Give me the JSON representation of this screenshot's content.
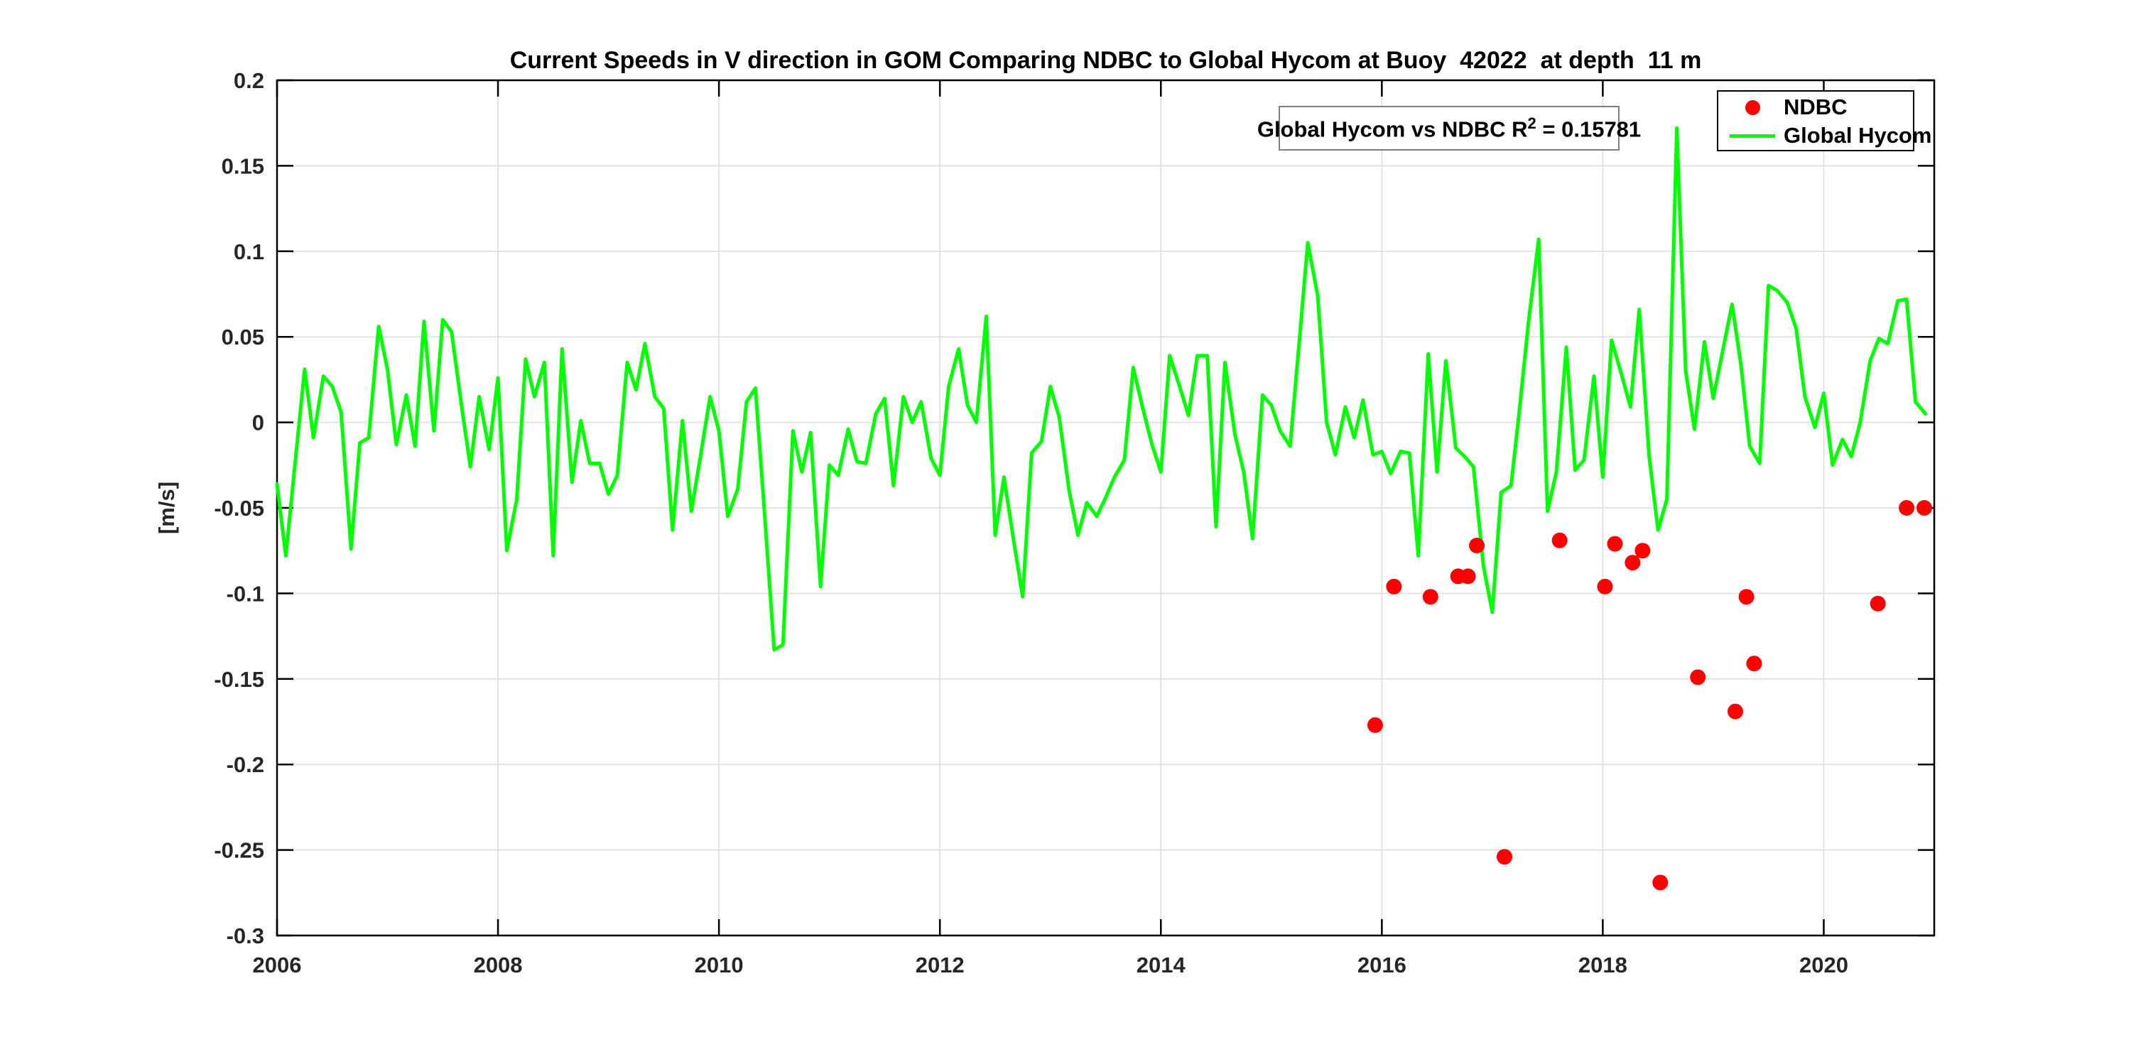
{
  "figure": {
    "title": "Current Speeds in V direction in GOM Comparing NDBC to Global Hycom at Buoy  42022  at depth  11 m",
    "background_color": "#ffffff",
    "axis_color": "#000000",
    "grid_color": "#e2e2e2",
    "tick_label_color": "#262626"
  },
  "annotation": {
    "text_main": "Global Hycom vs NDBC R",
    "superscript": "2",
    "text_value": " = 0.15781"
  },
  "legend": {
    "entries": [
      {
        "label": "NDBC",
        "marker": "red-dot-marker",
        "color": "#ff0000"
      },
      {
        "label": "Global Hycom",
        "marker": "green-line-marker",
        "color": "#00ff00"
      }
    ]
  },
  "chart_data": {
    "type": "line",
    "title": "Current Speeds in V direction in GOM Comparing NDBC to Global Hycom at Buoy  42022  at depth  11 m",
    "xlabel": "",
    "ylabel": "[m/s]",
    "xlim": [
      2006,
      2021
    ],
    "ylim": [
      -0.3,
      0.2
    ],
    "grid": true,
    "legend_position": "top-right",
    "x_ticks": [
      2006,
      2008,
      2010,
      2012,
      2014,
      2016,
      2018,
      2020
    ],
    "x_tick_labels": [
      "2006",
      "2008",
      "2010",
      "2012",
      "2014",
      "2016",
      "2018",
      "2020"
    ],
    "y_ticks": [
      0.2,
      0.15,
      0.1,
      0.05,
      0,
      -0.05,
      -0.1,
      -0.15,
      -0.2,
      -0.25,
      -0.3
    ],
    "y_tick_labels": [
      "0.2",
      "0.15",
      "0.1",
      "0.05",
      "0",
      "-0.05",
      "-0.1",
      "-0.15",
      "-0.2",
      "-0.25",
      "-0.3"
    ],
    "series": [
      {
        "name": "Global Hycom",
        "type": "line",
        "color": "#00ff00",
        "line_width": 5,
        "points": [
          [
            2006.0,
            -0.036
          ],
          [
            2006.08,
            -0.078
          ],
          [
            2006.17,
            -0.02
          ],
          [
            2006.25,
            0.031
          ],
          [
            2006.33,
            -0.009
          ],
          [
            2006.42,
            0.027
          ],
          [
            2006.5,
            0.021
          ],
          [
            2006.58,
            0.006
          ],
          [
            2006.67,
            -0.074
          ],
          [
            2006.75,
            -0.012
          ],
          [
            2006.83,
            -0.009
          ],
          [
            2006.92,
            0.056
          ],
          [
            2007.0,
            0.031
          ],
          [
            2007.08,
            -0.013
          ],
          [
            2007.17,
            0.016
          ],
          [
            2007.25,
            -0.014
          ],
          [
            2007.33,
            0.059
          ],
          [
            2007.42,
            -0.005
          ],
          [
            2007.5,
            0.06
          ],
          [
            2007.58,
            0.053
          ],
          [
            2007.67,
            0.01
          ],
          [
            2007.75,
            -0.026
          ],
          [
            2007.83,
            0.015
          ],
          [
            2007.92,
            -0.016
          ],
          [
            2008.0,
            0.026
          ],
          [
            2008.08,
            -0.075
          ],
          [
            2008.17,
            -0.045
          ],
          [
            2008.25,
            0.037
          ],
          [
            2008.33,
            0.015
          ],
          [
            2008.42,
            0.035
          ],
          [
            2008.5,
            -0.078
          ],
          [
            2008.58,
            0.043
          ],
          [
            2008.67,
            -0.035
          ],
          [
            2008.75,
            0.001
          ],
          [
            2008.83,
            -0.024
          ],
          [
            2008.92,
            -0.024
          ],
          [
            2009.0,
            -0.042
          ],
          [
            2009.08,
            -0.031
          ],
          [
            2009.17,
            0.035
          ],
          [
            2009.25,
            0.019
          ],
          [
            2009.33,
            0.046
          ],
          [
            2009.42,
            0.015
          ],
          [
            2009.5,
            0.008
          ],
          [
            2009.58,
            -0.063
          ],
          [
            2009.67,
            0.001
          ],
          [
            2009.75,
            -0.052
          ],
          [
            2009.83,
            -0.021
          ],
          [
            2009.92,
            0.015
          ],
          [
            2010.0,
            -0.005
          ],
          [
            2010.08,
            -0.055
          ],
          [
            2010.17,
            -0.039
          ],
          [
            2010.25,
            0.012
          ],
          [
            2010.33,
            0.02
          ],
          [
            2010.42,
            -0.06
          ],
          [
            2010.5,
            -0.133
          ],
          [
            2010.58,
            -0.13
          ],
          [
            2010.67,
            -0.005
          ],
          [
            2010.75,
            -0.029
          ],
          [
            2010.83,
            -0.006
          ],
          [
            2010.92,
            -0.096
          ],
          [
            2011.0,
            -0.025
          ],
          [
            2011.08,
            -0.031
          ],
          [
            2011.17,
            -0.004
          ],
          [
            2011.25,
            -0.023
          ],
          [
            2011.33,
            -0.024
          ],
          [
            2011.42,
            0.005
          ],
          [
            2011.5,
            0.014
          ],
          [
            2011.58,
            -0.037
          ],
          [
            2011.67,
            0.015
          ],
          [
            2011.75,
            0.0
          ],
          [
            2011.83,
            0.012
          ],
          [
            2011.92,
            -0.021
          ],
          [
            2012.0,
            -0.031
          ],
          [
            2012.08,
            0.021
          ],
          [
            2012.17,
            0.043
          ],
          [
            2012.25,
            0.01
          ],
          [
            2012.33,
            0.0
          ],
          [
            2012.42,
            0.062
          ],
          [
            2012.5,
            -0.066
          ],
          [
            2012.58,
            -0.032
          ],
          [
            2012.67,
            -0.07
          ],
          [
            2012.75,
            -0.102
          ],
          [
            2012.83,
            -0.018
          ],
          [
            2012.92,
            -0.011
          ],
          [
            2013.0,
            0.021
          ],
          [
            2013.08,
            0.003
          ],
          [
            2013.17,
            -0.04
          ],
          [
            2013.25,
            -0.066
          ],
          [
            2013.33,
            -0.047
          ],
          [
            2013.42,
            -0.055
          ],
          [
            2013.5,
            -0.044
          ],
          [
            2013.58,
            -0.032
          ],
          [
            2013.67,
            -0.022
          ],
          [
            2013.75,
            0.032
          ],
          [
            2013.83,
            0.01
          ],
          [
            2013.92,
            -0.013
          ],
          [
            2014.0,
            -0.029
          ],
          [
            2014.08,
            0.039
          ],
          [
            2014.17,
            0.021
          ],
          [
            2014.25,
            0.004
          ],
          [
            2014.33,
            0.039
          ],
          [
            2014.42,
            0.039
          ],
          [
            2014.5,
            -0.061
          ],
          [
            2014.58,
            0.035
          ],
          [
            2014.67,
            -0.007
          ],
          [
            2014.75,
            -0.029
          ],
          [
            2014.83,
            -0.068
          ],
          [
            2014.92,
            0.016
          ],
          [
            2015.0,
            0.01
          ],
          [
            2015.08,
            -0.005
          ],
          [
            2015.17,
            -0.014
          ],
          [
            2015.25,
            0.045
          ],
          [
            2015.33,
            0.105
          ],
          [
            2015.42,
            0.074
          ],
          [
            2015.5,
            0.0
          ],
          [
            2015.58,
            -0.019
          ],
          [
            2015.67,
            0.009
          ],
          [
            2015.75,
            -0.009
          ],
          [
            2015.83,
            0.013
          ],
          [
            2015.92,
            -0.019
          ],
          [
            2016.0,
            -0.017
          ],
          [
            2016.08,
            -0.03
          ],
          [
            2016.17,
            -0.017
          ],
          [
            2016.25,
            -0.018
          ],
          [
            2016.33,
            -0.078
          ],
          [
            2016.42,
            0.04
          ],
          [
            2016.5,
            -0.029
          ],
          [
            2016.58,
            0.036
          ],
          [
            2016.67,
            -0.015
          ],
          [
            2016.75,
            -0.02
          ],
          [
            2016.83,
            -0.026
          ],
          [
            2016.92,
            -0.084
          ],
          [
            2017.0,
            -0.111
          ],
          [
            2017.08,
            -0.041
          ],
          [
            2017.17,
            -0.037
          ],
          [
            2017.25,
            0.01
          ],
          [
            2017.33,
            0.06
          ],
          [
            2017.42,
            0.107
          ],
          [
            2017.5,
            -0.052
          ],
          [
            2017.58,
            -0.029
          ],
          [
            2017.67,
            0.044
          ],
          [
            2017.75,
            -0.028
          ],
          [
            2017.83,
            -0.022
          ],
          [
            2017.92,
            0.027
          ],
          [
            2018.0,
            -0.032
          ],
          [
            2018.08,
            0.048
          ],
          [
            2018.17,
            0.028
          ],
          [
            2018.25,
            0.009
          ],
          [
            2018.33,
            0.066
          ],
          [
            2018.42,
            -0.02
          ],
          [
            2018.5,
            -0.063
          ],
          [
            2018.58,
            -0.045
          ],
          [
            2018.67,
            0.172
          ],
          [
            2018.75,
            0.03
          ],
          [
            2018.83,
            -0.004
          ],
          [
            2018.92,
            0.047
          ],
          [
            2019.0,
            0.014
          ],
          [
            2019.08,
            0.04
          ],
          [
            2019.17,
            0.069
          ],
          [
            2019.25,
            0.034
          ],
          [
            2019.33,
            -0.014
          ],
          [
            2019.42,
            -0.024
          ],
          [
            2019.5,
            0.08
          ],
          [
            2019.58,
            0.077
          ],
          [
            2019.67,
            0.07
          ],
          [
            2019.75,
            0.055
          ],
          [
            2019.83,
            0.015
          ],
          [
            2019.92,
            -0.003
          ],
          [
            2020.0,
            0.017
          ],
          [
            2020.08,
            -0.025
          ],
          [
            2020.17,
            -0.01
          ],
          [
            2020.25,
            -0.02
          ],
          [
            2020.33,
            0.0
          ],
          [
            2020.42,
            0.036
          ],
          [
            2020.5,
            0.049
          ],
          [
            2020.58,
            0.046
          ],
          [
            2020.67,
            0.071
          ],
          [
            2020.75,
            0.072
          ],
          [
            2020.83,
            0.012
          ],
          [
            2020.92,
            0.005
          ]
        ]
      },
      {
        "name": "NDBC",
        "type": "scatter",
        "color": "#ff0000",
        "marker_radius": 11,
        "points": [
          [
            2015.94,
            -0.177
          ],
          [
            2016.11,
            -0.096
          ],
          [
            2016.44,
            -0.102
          ],
          [
            2016.69,
            -0.09
          ],
          [
            2016.78,
            -0.09
          ],
          [
            2016.86,
            -0.072
          ],
          [
            2017.11,
            -0.254
          ],
          [
            2017.61,
            -0.069
          ],
          [
            2018.02,
            -0.096
          ],
          [
            2018.11,
            -0.071
          ],
          [
            2018.27,
            -0.082
          ],
          [
            2018.36,
            -0.075
          ],
          [
            2018.52,
            -0.269
          ],
          [
            2018.86,
            -0.149
          ],
          [
            2019.2,
            -0.169
          ],
          [
            2019.3,
            -0.102
          ],
          [
            2019.37,
            -0.141
          ],
          [
            2020.49,
            -0.106
          ],
          [
            2020.75,
            -0.05
          ],
          [
            2020.91,
            -0.05
          ]
        ]
      }
    ]
  }
}
